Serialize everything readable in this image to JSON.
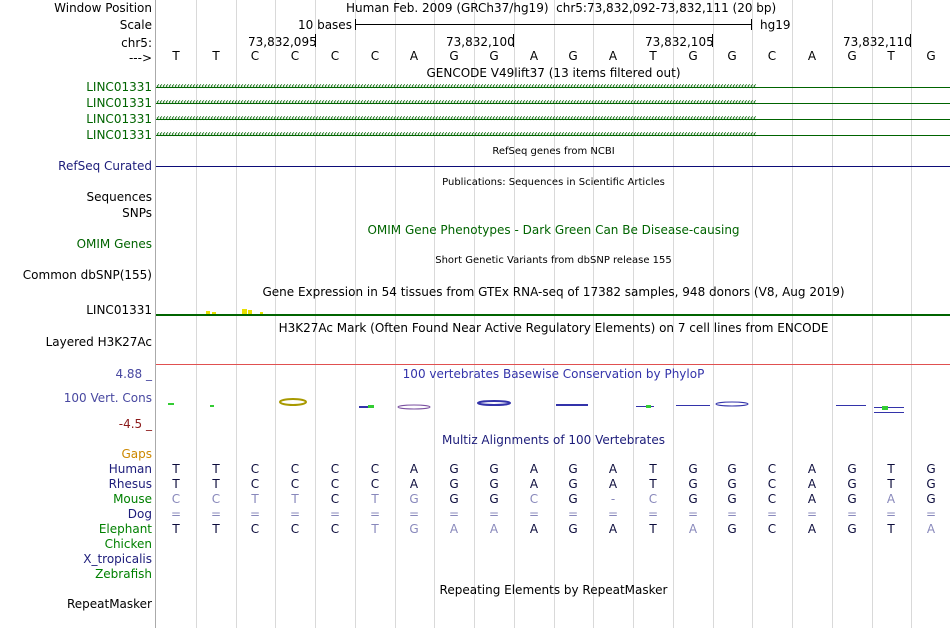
{
  "header": {
    "window_position_label": "Window Position",
    "scale_label": "Scale",
    "chr_label": "chr5:",
    "strand_label": "--->",
    "assembly_text": "Human Feb. 2009 (GRCh37/hg19)",
    "region_text": "chr5:73,832,092-73,832,111 (20 bp)",
    "scale_text": "10 bases",
    "db_text": "hg19",
    "coords": [
      "73,832,095",
      "73,832,100",
      "73,832,105",
      "73,832,110"
    ]
  },
  "sequence": [
    "T",
    "T",
    "C",
    "C",
    "C",
    "C",
    "A",
    "G",
    "G",
    "A",
    "G",
    "A",
    "T",
    "G",
    "G",
    "C",
    "A",
    "G",
    "T",
    "G"
  ],
  "tracks": {
    "gencode_title": "GENCODE V49lift37 (13 items filtered out)",
    "gencode_labels": [
      "LINC01331",
      "LINC01331",
      "LINC01331",
      "LINC01331"
    ],
    "refseq_label": "RefSeq Curated",
    "refseq_title": "RefSeq genes from NCBI",
    "sequences_label": "Sequences",
    "pubs_title": "Publications: Sequences in Scientific Articles",
    "snps_label": "SNPs",
    "omim_title": "OMIM Gene Phenotypes - Dark Green Can Be Disease-causing",
    "omim_label": "OMIM Genes",
    "dbsnp_title": "Short Genetic Variants from dbSNP release 155",
    "dbsnp_label": "Common dbSNP(155)",
    "gtex_title": "Gene Expression in 54 tissues from GTEx RNA-seq of 17382 samples, 948 donors (V8, Aug 2019)",
    "gtex_label": "LINC01331",
    "h3k_title": "H3K27Ac Mark (Often Found Near Active Regulatory Elements) on 7 cell lines from ENCODE",
    "h3k_label": "Layered H3K27Ac",
    "phylop_title": "100 vertebrates Basewise Conservation by PhyloP",
    "phylop_max": "4.88 _",
    "phylop_min": "-4.5 _",
    "cons_label": "100 Vert. Cons",
    "multiz_title": "Multiz Alignments of 100 Vertebrates",
    "gaps_label": "Gaps",
    "rmsk_title": "Repeating Elements by RepeatMasker",
    "rmsk_label": "RepeatMasker"
  },
  "alignment": {
    "species": [
      "Human",
      "Rhesus",
      "Mouse",
      "Dog",
      "Elephant",
      "Chicken",
      "X_tropicalis",
      "Zebrafish"
    ],
    "rows": [
      [
        "T",
        "T",
        "C",
        "C",
        "C",
        "C",
        "A",
        "G",
        "G",
        "A",
        "G",
        "A",
        "T",
        "G",
        "G",
        "C",
        "A",
        "G",
        "T",
        "G"
      ],
      [
        "T",
        "T",
        "C",
        "C",
        "C",
        "C",
        "A",
        "G",
        "G",
        "A",
        "G",
        "A",
        "T",
        "G",
        "G",
        "C",
        "A",
        "G",
        "T",
        "G"
      ],
      [
        "C",
        "C",
        "T",
        "T",
        "C",
        "T",
        "G",
        "G",
        "G",
        "C",
        "G",
        "-",
        "C",
        "G",
        "G",
        "C",
        "A",
        "G",
        "A",
        "G"
      ],
      [
        "=",
        "=",
        "=",
        "=",
        "=",
        "=",
        "=",
        "=",
        "=",
        "=",
        "=",
        "=",
        "=",
        "=",
        "=",
        "=",
        "=",
        "=",
        "=",
        "="
      ],
      [
        "T",
        "T",
        "C",
        "C",
        "C",
        "T",
        "G",
        "A",
        "A",
        "A",
        "G",
        "A",
        "T",
        "A",
        "G",
        "C",
        "A",
        "G",
        "T",
        "A"
      ]
    ]
  },
  "colors": {
    "gencode": "#006400",
    "refseq": "#0c0c78",
    "gtex_bar": "#e8e000",
    "h3k_line": "#e05050",
    "phylop": "#3333aa",
    "text_dark": "#000000"
  }
}
